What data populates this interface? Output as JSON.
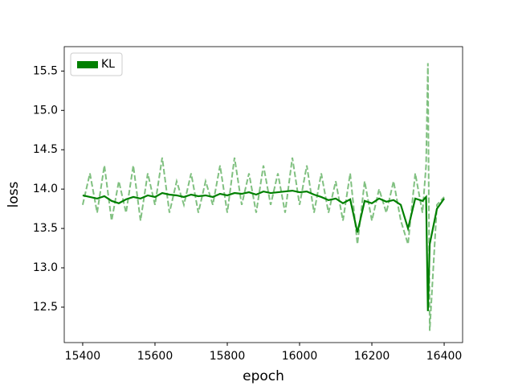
{
  "chart_data": {
    "type": "line",
    "xlabel": "epoch",
    "ylabel": "loss",
    "x": [
      15400,
      15420,
      15440,
      15460,
      15480,
      15500,
      15520,
      15540,
      15560,
      15580,
      15600,
      15620,
      15640,
      15660,
      15680,
      15700,
      15720,
      15740,
      15760,
      15780,
      15800,
      15820,
      15840,
      15860,
      15880,
      15900,
      15920,
      15940,
      15960,
      15980,
      16000,
      16020,
      16040,
      16060,
      16080,
      16100,
      16120,
      16140,
      16160,
      16180,
      16200,
      16220,
      16240,
      16260,
      16280,
      16300,
      16320,
      16340,
      16350,
      16355,
      16360,
      16380,
      16400
    ],
    "series": [
      {
        "color": "#80c080",
        "linestyle": "dashed",
        "values": [
          13.8,
          14.2,
          13.7,
          14.3,
          13.6,
          14.1,
          13.7,
          14.3,
          13.6,
          14.2,
          13.8,
          14.4,
          13.7,
          14.1,
          13.8,
          14.2,
          13.7,
          14.1,
          13.8,
          14.3,
          13.7,
          14.4,
          13.8,
          14.2,
          13.7,
          14.3,
          13.8,
          14.2,
          13.7,
          14.4,
          13.8,
          14.3,
          13.7,
          14.2,
          13.7,
          14.1,
          13.6,
          14.2,
          13.3,
          14.1,
          13.6,
          14.0,
          13.7,
          14.1,
          13.6,
          13.3,
          14.2,
          13.7,
          14.3,
          15.6,
          12.2,
          13.8,
          13.9
        ]
      },
      {
        "name": "KL",
        "color": "#008000",
        "linestyle": "solid",
        "values": [
          13.92,
          13.9,
          13.88,
          13.91,
          13.85,
          13.82,
          13.87,
          13.9,
          13.88,
          13.92,
          13.9,
          13.95,
          13.93,
          13.92,
          13.9,
          13.93,
          13.91,
          13.92,
          13.9,
          13.94,
          13.92,
          13.95,
          13.94,
          13.96,
          13.93,
          13.97,
          13.95,
          13.96,
          13.97,
          13.98,
          13.96,
          13.97,
          13.93,
          13.9,
          13.86,
          13.88,
          13.82,
          13.87,
          13.45,
          13.85,
          13.82,
          13.88,
          13.84,
          13.86,
          13.8,
          13.5,
          13.88,
          13.85,
          13.9,
          12.45,
          13.3,
          13.75,
          13.88
        ]
      }
    ],
    "xlim": [
      15349,
      16451
    ],
    "ylim": [
      12.05,
      15.81
    ],
    "xticks": [
      15400,
      15600,
      15800,
      16000,
      16200,
      16400
    ],
    "yticks": [
      12.5,
      {
        "value": 13,
        "label": "13.0"
      },
      13.5,
      {
        "value": 14,
        "label": "14.0"
      },
      14.5,
      {
        "value": 15,
        "label": "15.0"
      },
      15.5
    ],
    "grid": false,
    "legend": "upper left"
  }
}
